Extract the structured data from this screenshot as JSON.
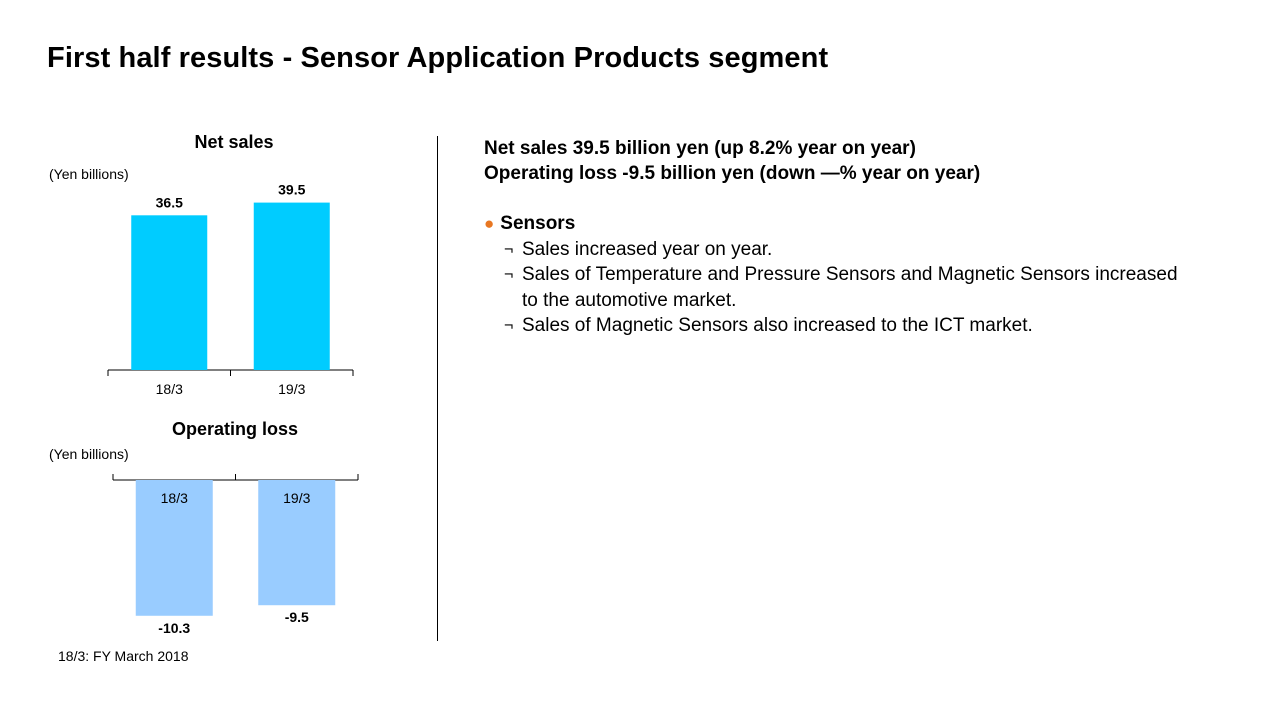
{
  "title": "First half results - Sensor Application Products segment",
  "colors": {
    "net_sales_bar": "#00ccff",
    "operating_loss_bar": "#99ccff",
    "bullet_accent": "#e87722"
  },
  "chart_data": [
    {
      "type": "bar",
      "title": "Net sales",
      "unit_label": "(Yen billions)",
      "categories": [
        "18/3",
        "19/3"
      ],
      "values": [
        36.5,
        39.5
      ],
      "value_labels": [
        "36.5",
        "39.5"
      ],
      "ylim": [
        0,
        42
      ],
      "grid": false,
      "legend": "none"
    },
    {
      "type": "bar",
      "title": "Operating loss",
      "unit_label": "(Yen billions)",
      "categories": [
        "18/3",
        "19/3"
      ],
      "values": [
        -10.3,
        -9.5
      ],
      "value_labels": [
        "-10.3",
        "-9.5"
      ],
      "ylim": [
        -11,
        0
      ],
      "grid": false,
      "legend": "none"
    }
  ],
  "summary": {
    "line1": "Net sales 39.5 billion yen (up 8.2% year on year)",
    "line2": "Operating loss -9.5 billion yen (down —% year on year)"
  },
  "bullets": {
    "marker": "●",
    "heading": "Sensors",
    "sub_marker": "¬",
    "items": [
      "Sales increased year on year.",
      "Sales of Temperature and Pressure Sensors and Magnetic Sensors increased to the automotive market.",
      "Sales of Magnetic Sensors also increased to the ICT market."
    ]
  },
  "footnote": "18/3: FY March 2018"
}
